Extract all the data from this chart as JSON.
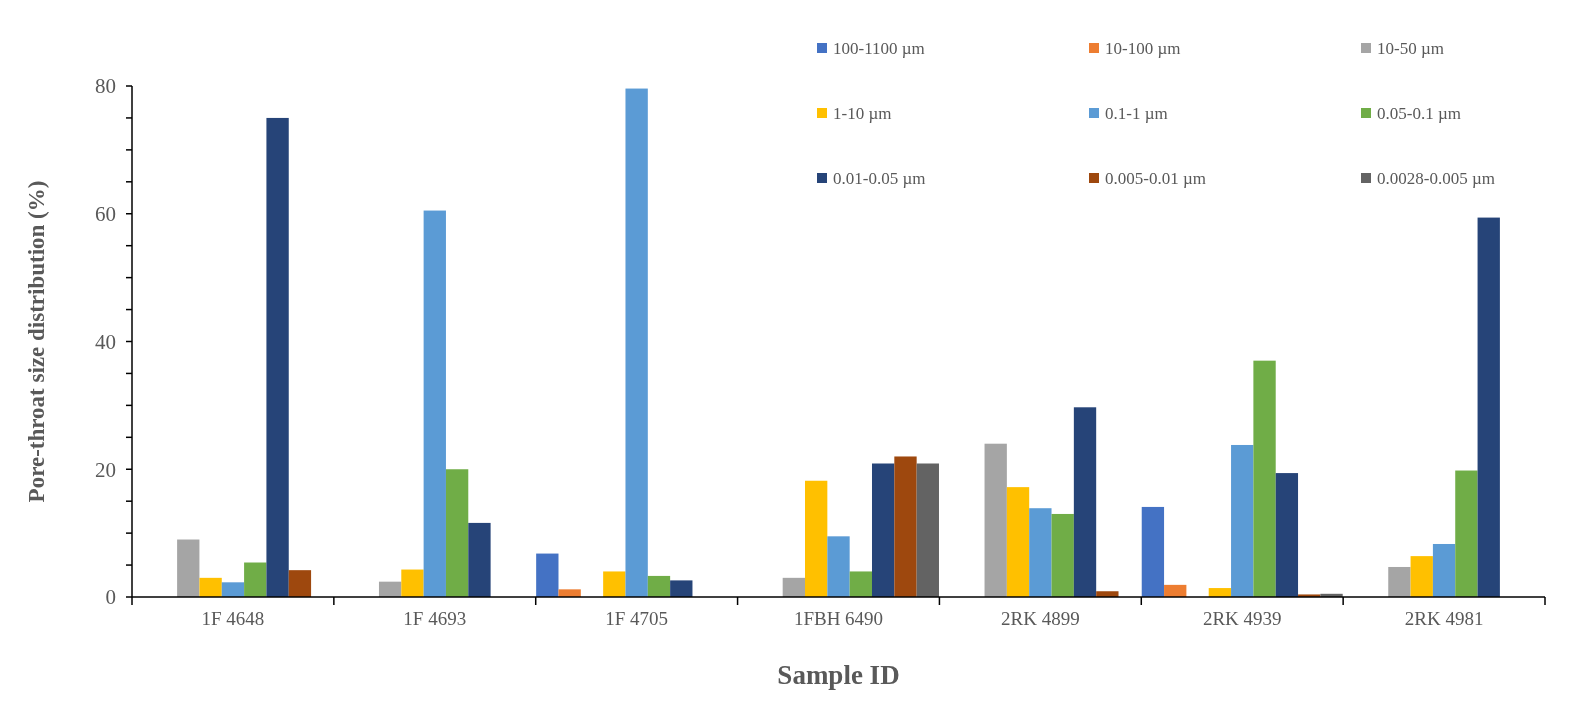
{
  "chart_data": {
    "type": "bar",
    "xlabel": "Sample ID",
    "ylabel": "Pore-throat size distribution (%)",
    "categories": [
      "1F 4648",
      "1F 4693",
      "1F 4705",
      "1FBH 6490",
      "2RK 4899",
      "2RK 4939",
      "2RK 4981"
    ],
    "series": [
      {
        "name": "100-1100 µm",
        "color": "#4472c4",
        "values": [
          null,
          null,
          6.8,
          null,
          null,
          14.1,
          null
        ]
      },
      {
        "name": "10-100 µm",
        "color": "#ed7d31",
        "values": [
          null,
          null,
          1.2,
          null,
          null,
          1.9,
          null
        ]
      },
      {
        "name": "10-50 µm",
        "color": "#a5a5a5",
        "values": [
          9,
          2.4,
          null,
          3,
          24,
          null,
          4.7
        ]
      },
      {
        "name": "1-10 µm",
        "color": "#ffc000",
        "values": [
          3,
          4.3,
          4,
          18.2,
          17.2,
          1.4,
          6.4
        ]
      },
      {
        "name": "0.1-1 µm",
        "color": "#5b9bd5",
        "values": [
          2.3,
          60.5,
          79.6,
          9.5,
          13.9,
          23.8,
          8.3
        ]
      },
      {
        "name": "0.05-0.1 µm",
        "color": "#70ad47",
        "values": [
          5.4,
          20,
          3.3,
          4,
          13,
          37,
          19.8
        ]
      },
      {
        "name": "0.01-0.05 µm",
        "color": "#264478",
        "values": [
          75,
          11.6,
          2.6,
          20.9,
          29.7,
          19.4,
          59.4
        ]
      },
      {
        "name": "0.005-0.01 µm",
        "color": "#9e480e",
        "values": [
          4.2,
          null,
          null,
          22,
          0.9,
          0.4,
          null
        ]
      },
      {
        "name": "0.0028-0.005 µm",
        "color": "#636363",
        "values": [
          null,
          null,
          null,
          20.9,
          null,
          0.5,
          null
        ]
      }
    ],
    "ylim": [
      0,
      80
    ],
    "yticks": [
      0,
      {
        "value": 5,
        "label": null
      },
      {
        "value": 10,
        "label": null
      },
      {
        "value": 15,
        "label": null
      },
      20,
      {
        "value": 25,
        "label": null
      },
      {
        "value": 30,
        "label": null
      },
      {
        "value": 35,
        "label": null
      },
      40,
      {
        "value": 45,
        "label": null
      },
      {
        "value": 50,
        "label": null
      },
      {
        "value": 55,
        "label": null
      },
      60,
      {
        "value": 65,
        "label": null
      },
      {
        "value": 70,
        "label": null
      },
      {
        "value": 75,
        "label": null
      },
      80
    ],
    "grid": false,
    "legend": "top right"
  }
}
